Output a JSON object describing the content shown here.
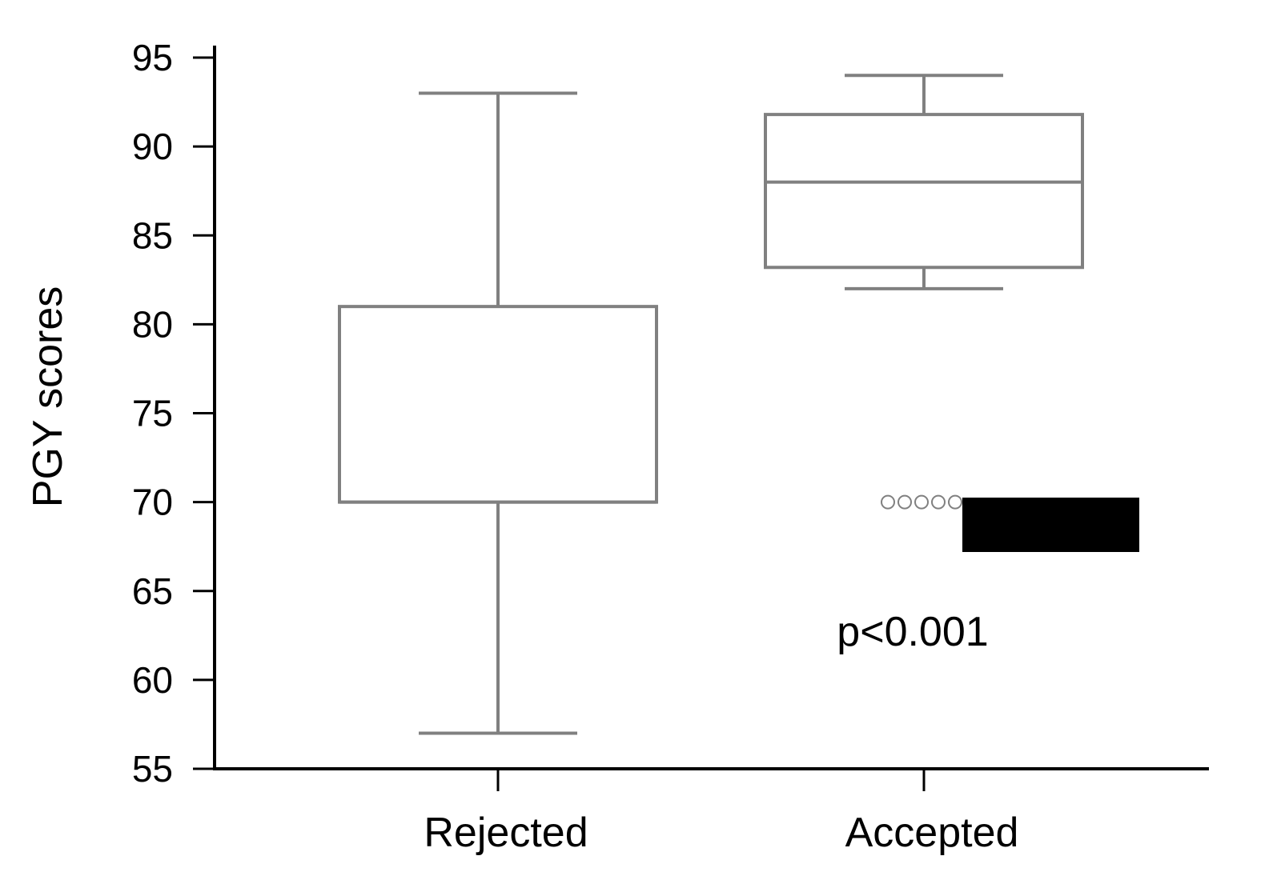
{
  "chart_data": {
    "type": "box",
    "title": "",
    "xlabel": "",
    "ylabel": "PGY scores",
    "ylim": [
      55,
      95
    ],
    "yticks": [
      55,
      60,
      65,
      70,
      75,
      80,
      85,
      90,
      95
    ],
    "categories": [
      "Rejected",
      "Accepted"
    ],
    "boxes": [
      {
        "category": "Rejected",
        "min": 57,
        "q1": 70,
        "median": 70,
        "q3": 81,
        "max": 93,
        "outliers": []
      },
      {
        "category": "Accepted",
        "min": 82,
        "q1": 83.2,
        "median": 88,
        "q3": 91.8,
        "max": 94,
        "outliers": [
          70,
          70,
          70,
          70,
          70
        ]
      }
    ],
    "annotations": [
      {
        "text": "p<0.001"
      }
    ],
    "grid": false,
    "colors": {
      "box": "#808080",
      "axis": "#000000",
      "redaction": "#000000"
    }
  }
}
